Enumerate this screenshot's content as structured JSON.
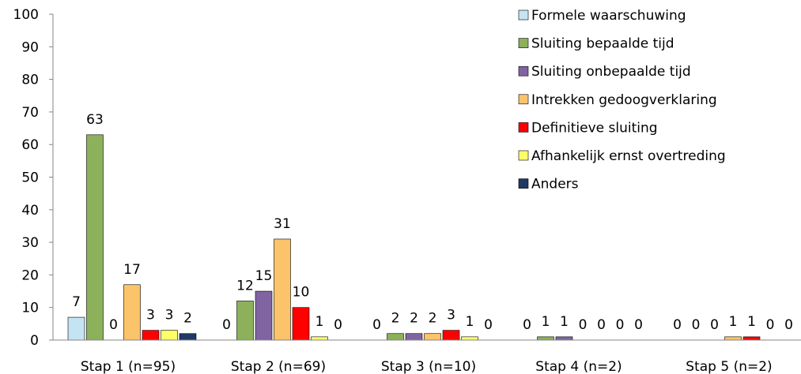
{
  "chart_data": {
    "type": "bar",
    "categories": [
      "Stap 1 (n=95)",
      "Stap 2 (n=69)",
      "Stap 3 (n=10)",
      "Stap 4 (n=2)",
      "Stap 5 (n=2)"
    ],
    "ylim": [
      0,
      100
    ],
    "yticks": [
      0,
      10,
      20,
      30,
      40,
      50,
      60,
      70,
      80,
      90,
      100
    ],
    "grid": false,
    "legend_position": "top-right",
    "series": [
      {
        "name": "Formele waarschuwing",
        "color": "#c5e4f3",
        "values": [
          7,
          0,
          0,
          0,
          0
        ]
      },
      {
        "name": "Sluiting bepaalde tijd",
        "color": "#8db05a",
        "values": [
          63,
          12,
          2,
          1,
          0
        ]
      },
      {
        "name": "Sluiting onbepaalde tijd",
        "color": "#8064a2",
        "values": [
          0,
          15,
          2,
          1,
          0
        ]
      },
      {
        "name": "Intrekken gedoogverklaring",
        "color": "#fbc36a",
        "values": [
          17,
          31,
          2,
          0,
          1
        ]
      },
      {
        "name": "Definitieve sluiting",
        "color": "#ff0000",
        "values": [
          3,
          10,
          3,
          0,
          1
        ]
      },
      {
        "name": "Afhankelijk ernst overtreding",
        "color": "#ffff66",
        "values": [
          3,
          1,
          1,
          0,
          0
        ]
      },
      {
        "name": "Anders",
        "color": "#1f3864",
        "values": [
          2,
          0,
          0,
          0,
          0
        ]
      }
    ]
  }
}
